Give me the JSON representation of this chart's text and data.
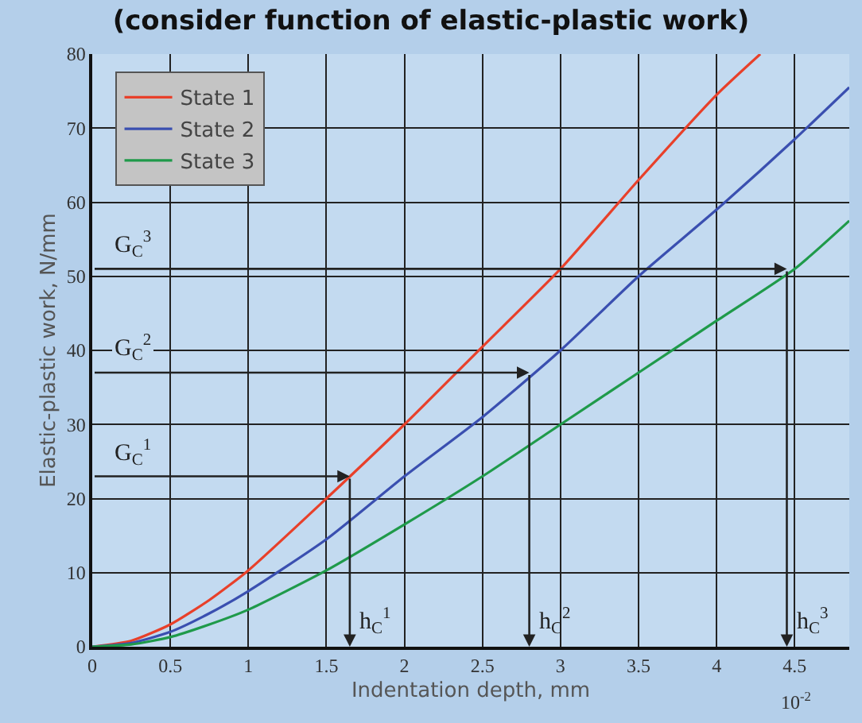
{
  "chart_data": {
    "type": "line",
    "title": "(consider function of elastic-plastic work)",
    "xlabel": "Indentation depth, mm",
    "ylabel": "Elastic-plastic work, N/mm",
    "x": [
      0,
      0.25,
      0.5,
      0.75,
      1,
      1.5,
      2,
      2.5,
      3,
      3.5,
      4,
      4.5,
      4.85
    ],
    "series": [
      {
        "name": "State 1",
        "color": "#e8402a",
        "x": [
          0,
          0.25,
          0.5,
          0.75,
          1,
          1.5,
          2,
          2.5,
          3,
          3.5,
          4,
          4.28
        ],
        "values": [
          0,
          0.8,
          3,
          6.3,
          10.3,
          20,
          30,
          40.5,
          51,
          63,
          74.5,
          80
        ]
      },
      {
        "name": "State 2",
        "color": "#3a4fb0",
        "values": [
          0,
          0.5,
          2,
          4.5,
          7.5,
          14.5,
          23,
          31,
          40,
          50,
          59,
          68.5,
          75.5
        ]
      },
      {
        "name": "State 3",
        "color": "#1f9a4a",
        "values": [
          0,
          0.3,
          1.3,
          3,
          5,
          10.3,
          16.5,
          23,
          30,
          37,
          44,
          51,
          57.5
        ]
      }
    ],
    "xlim": [
      0,
      4.85
    ],
    "ylim": [
      0,
      80
    ],
    "xticks": [
      0,
      0.5,
      1,
      1.5,
      2,
      2.5,
      3,
      3.5,
      4,
      4.5
    ],
    "yticks": [
      0,
      10,
      20,
      30,
      40,
      50,
      60,
      70,
      80
    ],
    "grid": true,
    "legend": "top left",
    "marker": "none",
    "line_style": "solid",
    "annotations": [
      {
        "text": "G$_{C}$$^{1}$",
        "x": 1.65,
        "y": 23
      },
      {
        "text": "h$_{C}$$^{1}$",
        "x": 1.65,
        "y": 23
      },
      {
        "text": "G$_{C}$$^{2}$",
        "x": 2.8,
        "y": 37
      },
      {
        "text": "h$_{C}$$^{2}$",
        "x": 2.8,
        "y": 37
      },
      {
        "text": "G$_{C}$$^{3}$",
        "x": 4.45,
        "y": 51
      },
      {
        "text": "h$_{C}$$^{3}$",
        "x": 4.45,
        "y": 51
      },
      "10$^{-2}$"
    ]
  }
}
